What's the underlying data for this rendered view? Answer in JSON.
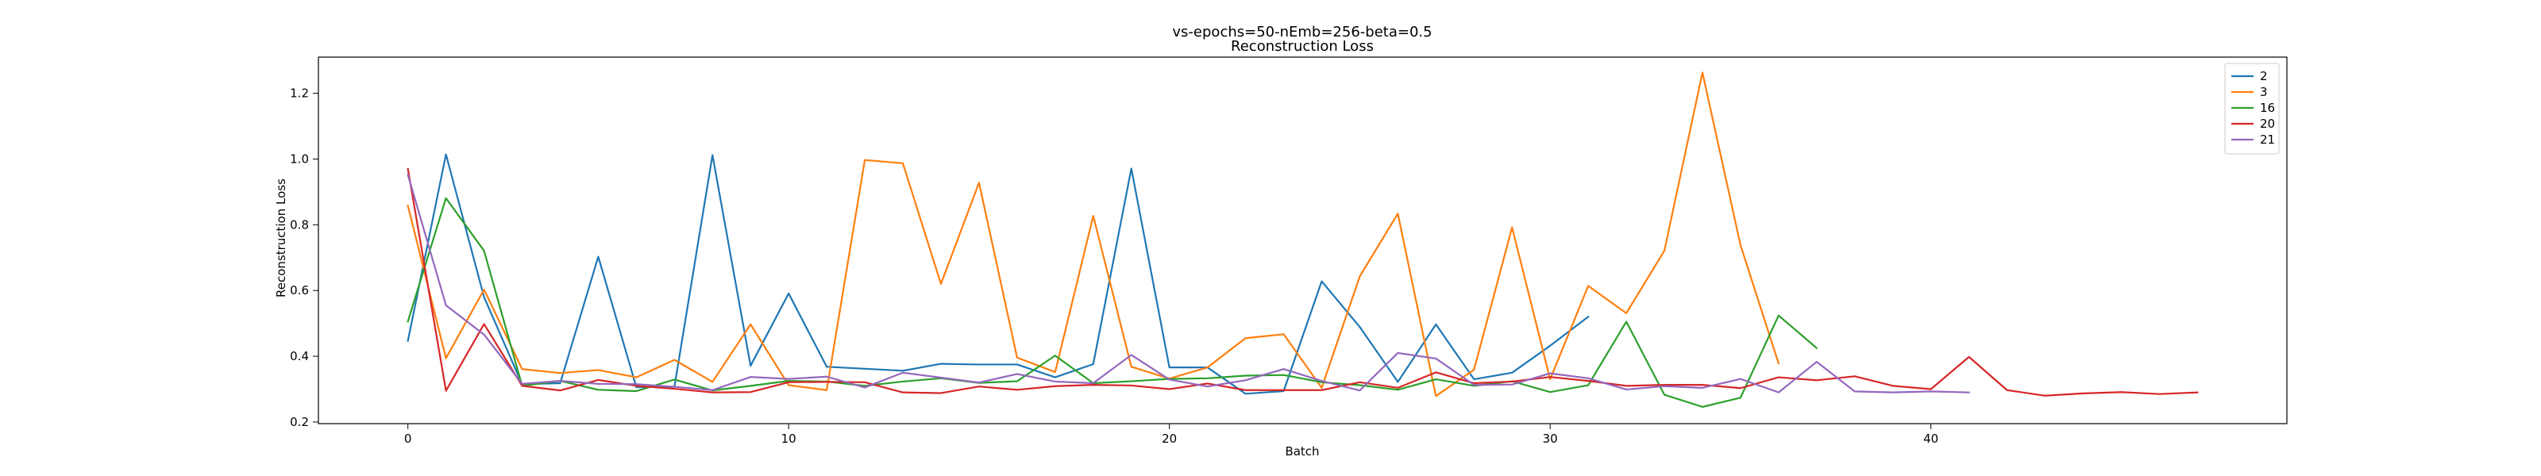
{
  "chart_data": {
    "type": "line",
    "title": "vs-epochs=50-nEmb=256-beta=0.5",
    "subtitle": "Reconstruction Loss",
    "xlabel": "Batch",
    "ylabel": "Reconstruction Loss",
    "xlim": [
      -2.35,
      49.35
    ],
    "ylim": [
      0.195,
      1.31
    ],
    "xticks": [
      0,
      10,
      20,
      30,
      40
    ],
    "yticks": [
      0.2,
      0.4,
      0.6,
      0.8,
      1.0,
      1.2
    ],
    "grid": false,
    "legend_position": "top-right",
    "series": [
      {
        "name": "2",
        "color": "#1f77b4",
        "values": [
          0.447,
          1.014,
          0.58,
          0.315,
          0.318,
          0.703,
          0.306,
          0.307,
          1.012,
          0.371,
          0.591,
          0.368,
          0.362,
          0.356,
          0.377,
          0.375,
          0.375,
          0.336,
          0.376,
          0.971,
          0.366,
          0.366,
          0.286,
          0.294,
          0.628,
          0.489,
          0.322,
          0.497,
          0.33,
          0.35,
          0.432,
          0.52
        ]
      },
      {
        "name": "3",
        "color": "#ff7f0e",
        "values": [
          0.858,
          0.394,
          0.603,
          0.361,
          0.349,
          0.358,
          0.336,
          0.389,
          0.322,
          0.497,
          0.312,
          0.297,
          0.997,
          0.987,
          0.62,
          0.928,
          0.396,
          0.352,
          0.827,
          0.368,
          0.332,
          0.366,
          0.455,
          0.467,
          0.304,
          0.643,
          0.834,
          0.279,
          0.359,
          0.792,
          0.33,
          0.614,
          0.531,
          0.721,
          1.263,
          0.738,
          0.378
        ]
      },
      {
        "name": "16",
        "color": "#2ca02c",
        "values": [
          0.506,
          0.881,
          0.721,
          0.31,
          0.325,
          0.298,
          0.294,
          0.329,
          0.296,
          0.31,
          0.325,
          0.323,
          0.31,
          0.323,
          0.333,
          0.319,
          0.324,
          0.402,
          0.318,
          0.324,
          0.331,
          0.333,
          0.341,
          0.343,
          0.321,
          0.312,
          0.298,
          0.33,
          0.31,
          0.324,
          0.291,
          0.312,
          0.505,
          0.283,
          0.246,
          0.274,
          0.524,
          0.425
        ]
      },
      {
        "name": "20",
        "color": "#d62728",
        "values": [
          0.97,
          0.295,
          0.498,
          0.31,
          0.296,
          0.328,
          0.31,
          0.301,
          0.29,
          0.291,
          0.321,
          0.322,
          0.321,
          0.29,
          0.288,
          0.308,
          0.298,
          0.309,
          0.313,
          0.311,
          0.3,
          0.317,
          0.297,
          0.297,
          0.297,
          0.321,
          0.304,
          0.351,
          0.318,
          0.323,
          0.337,
          0.325,
          0.31,
          0.313,
          0.313,
          0.303,
          0.336,
          0.327,
          0.339,
          0.31,
          0.3,
          0.398,
          0.297,
          0.28,
          0.287,
          0.291,
          0.285,
          0.29
        ]
      },
      {
        "name": "21",
        "color": "#9467bd",
        "values": [
          0.952,
          0.555,
          0.466,
          0.316,
          0.325,
          0.316,
          0.315,
          0.307,
          0.297,
          0.337,
          0.331,
          0.338,
          0.305,
          0.35,
          0.335,
          0.32,
          0.346,
          0.323,
          0.318,
          0.404,
          0.329,
          0.308,
          0.327,
          0.361,
          0.325,
          0.296,
          0.41,
          0.393,
          0.313,
          0.314,
          0.348,
          0.333,
          0.299,
          0.309,
          0.304,
          0.331,
          0.29,
          0.383,
          0.293,
          0.29,
          0.293,
          0.29
        ]
      }
    ]
  }
}
